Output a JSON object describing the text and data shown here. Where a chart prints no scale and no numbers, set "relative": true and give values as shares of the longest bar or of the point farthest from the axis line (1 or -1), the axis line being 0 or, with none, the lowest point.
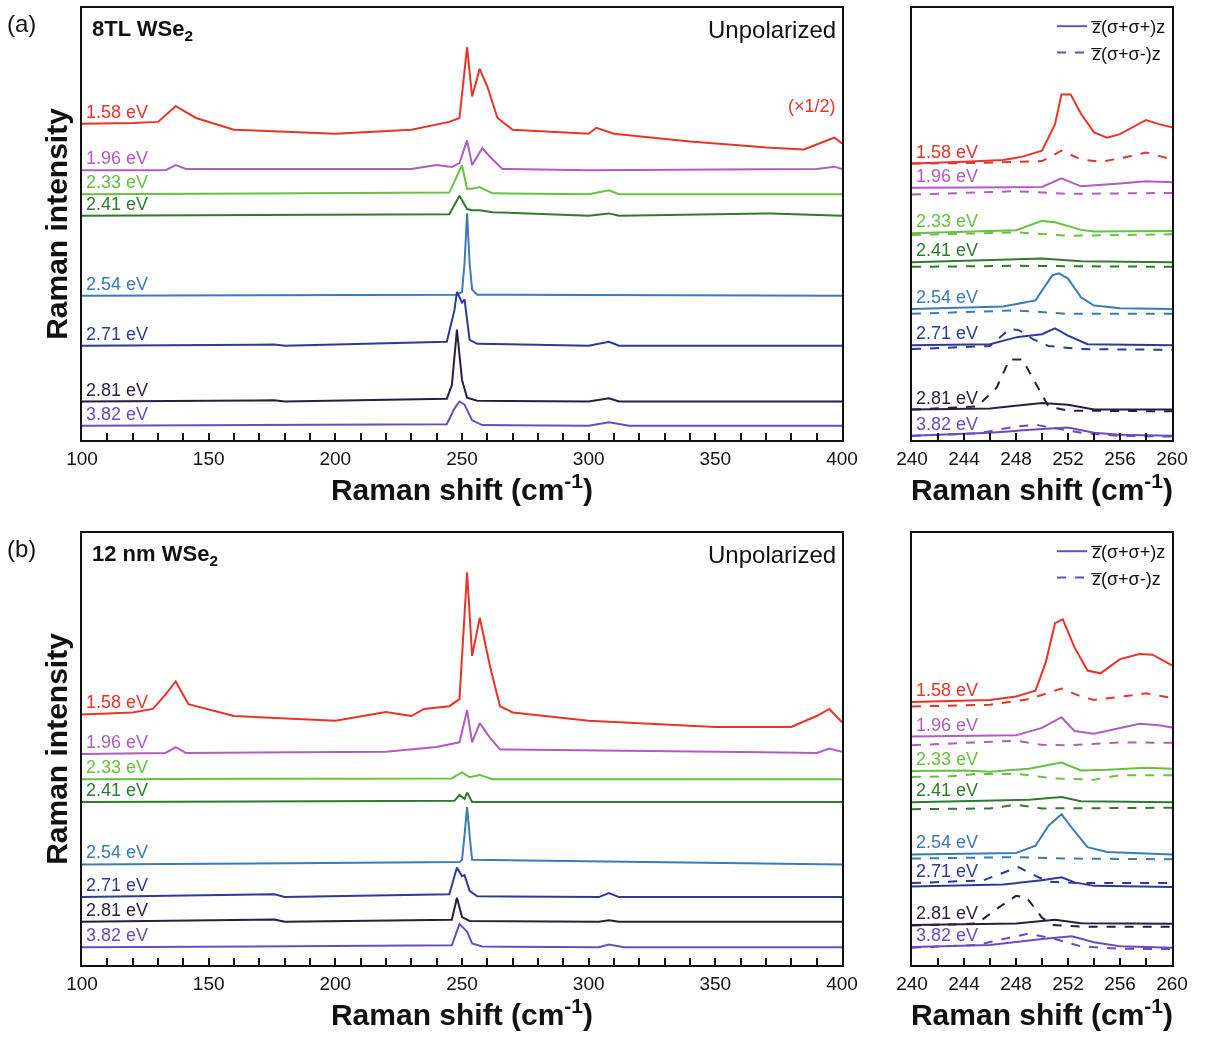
{
  "chart_data": [
    {
      "type": "line",
      "title": "(a)",
      "subtitle": "8TL WSe$_{2}$",
      "xlabel": "Raman shift (cm$^{-1}$)",
      "ylabel": "Raman intensity",
      "relative": true,
      "tick_labels": "x",
      "xlim": [
        100,
        400
      ],
      "xticks": [
        100,
        {
          "value": 110,
          "label": null
        },
        {
          "value": 120,
          "label": null
        },
        {
          "value": 130,
          "label": null
        },
        {
          "value": 140,
          "label": null
        },
        150,
        {
          "value": 160,
          "label": null
        },
        {
          "value": 170,
          "label": null
        },
        {
          "value": 180,
          "label": null
        },
        {
          "value": 190,
          "label": null
        },
        200,
        {
          "value": 210,
          "label": null
        },
        {
          "value": 220,
          "label": null
        },
        {
          "value": 230,
          "label": null
        },
        {
          "value": 240,
          "label": null
        },
        250,
        {
          "value": 260,
          "label": null
        },
        {
          "value": 270,
          "label": null
        },
        {
          "value": 280,
          "label": null
        },
        {
          "value": 290,
          "label": null
        },
        300,
        {
          "value": 310,
          "label": null
        },
        {
          "value": 320,
          "label": null
        },
        {
          "value": 330,
          "label": null
        },
        {
          "value": 340,
          "label": null
        },
        350,
        {
          "value": 360,
          "label": null
        },
        {
          "value": 370,
          "label": null
        },
        {
          "value": 380,
          "label": null
        },
        {
          "value": 390,
          "label": null
        },
        400
      ],
      "annotations": [
        "Unpolarized",
        "(×1/2)"
      ],
      "series": [
        {
          "name": "1.58 eV",
          "color": "#e8332a",
          "x": [
            100,
            120,
            130,
            137,
            145,
            160,
            200,
            230,
            245,
            249,
            252,
            254,
            257,
            260,
            264,
            270,
            300,
            303,
            310,
            340,
            370,
            385,
            393,
            397,
            400
          ],
          "values": [
            0.805,
            0.807,
            0.81,
            0.85,
            0.82,
            0.79,
            0.78,
            0.79,
            0.81,
            0.82,
            1,
            0.875,
            0.945,
            0.9,
            0.82,
            0.79,
            0.78,
            0.795,
            0.78,
            0.76,
            0.745,
            0.74,
            0.76,
            0.77,
            0.755
          ]
        },
        {
          "name": "1.96 eV",
          "color": "#b05cc0",
          "x": [
            100,
            133,
            137,
            141,
            230,
            240,
            246,
            249,
            252,
            254,
            258,
            262,
            266,
            300,
            390,
            397,
            400
          ],
          "values": [
            0.687,
            0.687,
            0.7,
            0.69,
            0.69,
            0.7,
            0.695,
            0.705,
            0.763,
            0.7,
            0.743,
            0.715,
            0.69,
            0.687,
            0.69,
            0.696,
            0.69
          ]
        },
        {
          "name": "2.33 eV",
          "color": "#66c23f",
          "x": [
            100,
            245,
            250,
            252,
            254,
            257,
            262,
            300,
            308,
            312,
            400
          ],
          "values": [
            0.626,
            0.63,
            0.7,
            0.64,
            0.64,
            0.644,
            0.628,
            0.626,
            0.636,
            0.626,
            0.626
          ]
        },
        {
          "name": "2.41 eV",
          "color": "#2f7a2f",
          "x": [
            100,
            245,
            249,
            252,
            254,
            257,
            262,
            300,
            308,
            312,
            372,
            400
          ],
          "values": [
            0.571,
            0.575,
            0.622,
            0.588,
            0.585,
            0.585,
            0.58,
            0.571,
            0.577,
            0.571,
            0.577,
            0.571
          ]
        },
        {
          "name": "2.54 eV",
          "color": "#3d7ab8",
          "x": [
            100,
            248,
            250,
            251,
            252,
            253,
            254,
            256,
            400
          ],
          "values": [
            0.367,
            0.37,
            0.377,
            0.45,
            0.577,
            0.45,
            0.383,
            0.37,
            0.367
          ]
        },
        {
          "name": "2.71 eV",
          "color": "#2d3a9a",
          "x": [
            100,
            176,
            180,
            244,
            247,
            248,
            250,
            251,
            253,
            256,
            300,
            308,
            312,
            400
          ],
          "values": [
            0.24,
            0.243,
            0.24,
            0.25,
            0.33,
            0.377,
            0.35,
            0.358,
            0.255,
            0.245,
            0.24,
            0.25,
            0.24,
            0.24
          ]
        },
        {
          "name": "2.81 eV",
          "color": "#2b1d42",
          "x": [
            100,
            176,
            180,
            244,
            246,
            248,
            250,
            252,
            256,
            300,
            308,
            312,
            400
          ],
          "values": [
            0.098,
            0.101,
            0.098,
            0.105,
            0.14,
            0.281,
            0.153,
            0.108,
            0.1,
            0.098,
            0.106,
            0.098,
            0.098
          ]
        },
        {
          "name": "3.82 eV",
          "color": "#6b4cc0",
          "x": [
            100,
            244,
            247,
            249,
            251,
            254,
            258,
            300,
            308,
            316,
            400
          ],
          "values": [
            0.036,
            0.04,
            0.08,
            0.098,
            0.09,
            0.05,
            0.038,
            0.036,
            0.045,
            0.036,
            0.036
          ]
        }
      ]
    },
    {
      "type": "line",
      "xlabel": "Raman shift (cm$^{-1}$)",
      "relative": true,
      "tick_labels": "x",
      "legend": "top right",
      "xlim": [
        240,
        260
      ],
      "xticks": [
        240,
        {
          "value": 242,
          "label": null
        },
        244,
        {
          "value": 246,
          "label": null
        },
        248,
        {
          "value": 250,
          "label": null
        },
        252,
        {
          "value": 254,
          "label": null
        },
        256,
        {
          "value": 258,
          "label": null
        },
        260
      ],
      "annotations": [
        {
          "text": "1.58 eV",
          "y": 0.8
        },
        {
          "text": "1.96 eV",
          "y": 0.73
        },
        {
          "text": "2.33 eV",
          "y": 0.598
        },
        {
          "text": "2.41 eV",
          "y": 0.514
        },
        {
          "text": "2.54 eV",
          "y": 0.379
        },
        {
          "text": "2.71 eV",
          "y": 0.274
        },
        {
          "text": "2.81 eV",
          "y": 0.088
        },
        {
          "text": "3.82 eV",
          "y": 0.012
        }
      ],
      "series": [
        {
          "color": "#e8332a",
          "x": [
            240,
            244,
            247,
            248.5,
            250,
            251,
            251.5,
            252.2,
            253,
            254,
            255,
            256,
            258,
            259,
            260
          ],
          "values": [
            0.8,
            0.805,
            0.81,
            0.82,
            0.837,
            0.914,
            1,
            1,
            0.944,
            0.89,
            0.875,
            0.885,
            0.926,
            0.914,
            0.905
          ]
        },
        {
          "color": "#e8332a",
          "line_style": "dashed",
          "x": [
            240,
            244,
            248,
            250,
            251.5,
            253,
            254.5,
            256,
            258,
            260
          ],
          "values": [
            0.8,
            0.801,
            0.805,
            0.807,
            0.837,
            0.812,
            0.805,
            0.815,
            0.832,
            0.812
          ]
        },
        {
          "color": "#b05cc0",
          "x": [
            240,
            250,
            251.5,
            253,
            256,
            258,
            260
          ],
          "values": [
            0.73,
            0.732,
            0.757,
            0.734,
            0.742,
            0.749,
            0.746
          ]
        },
        {
          "color": "#b05cc0",
          "line_style": "dashed",
          "x": [
            240,
            248,
            252,
            260
          ],
          "values": [
            0.71,
            0.72,
            0.712,
            0.715
          ]
        },
        {
          "color": "#66c23f",
          "x": [
            240,
            248,
            250,
            251,
            253,
            254,
            260
          ],
          "values": [
            0.598,
            0.607,
            0.634,
            0.63,
            0.608,
            0.603,
            0.605
          ]
        },
        {
          "color": "#66c23f",
          "line_style": "dashed",
          "x": [
            240,
            248,
            252,
            260
          ],
          "values": [
            0.593,
            0.601,
            0.591,
            0.595
          ]
        },
        {
          "color": "#2f7a2f",
          "x": [
            240,
            250,
            253,
            260
          ],
          "values": [
            0.514,
            0.525,
            0.517,
            0.514
          ]
        },
        {
          "color": "#2f7a2f",
          "line_style": "dashed",
          "x": [
            240,
            248,
            260
          ],
          "values": [
            0.501,
            0.504,
            0.501
          ]
        },
        {
          "color": "#3d7ab8",
          "x": [
            240,
            247,
            249.5,
            250.8,
            251.3,
            252,
            253,
            254,
            256,
            260
          ],
          "values": [
            0.379,
            0.386,
            0.404,
            0.477,
            0.482,
            0.467,
            0.413,
            0.389,
            0.381,
            0.379
          ]
        },
        {
          "color": "#3d7ab8",
          "line_style": "dashed",
          "x": [
            240,
            248,
            252,
            260
          ],
          "values": [
            0.365,
            0.375,
            0.365,
            0.365
          ]
        },
        {
          "color": "#2d3a9a",
          "x": [
            240,
            246,
            248,
            250,
            251,
            252,
            253.5,
            260
          ],
          "values": [
            0.274,
            0.277,
            0.297,
            0.306,
            0.323,
            0.302,
            0.277,
            0.274
          ]
        },
        {
          "color": "#2d3a9a",
          "line_style": "dashed",
          "x": [
            240,
            246,
            247.5,
            248.2,
            249.3,
            250.5,
            253,
            260
          ],
          "values": [
            0.263,
            0.272,
            0.321,
            0.318,
            0.292,
            0.272,
            0.263,
            0.261
          ]
        },
        {
          "color": "#2b1d42",
          "x": [
            240,
            246,
            250,
            252,
            254,
            260
          ],
          "values": [
            0.088,
            0.091,
            0.107,
            0.102,
            0.088,
            0.088
          ]
        },
        {
          "color": "#2b1d42",
          "line_style": "dashed",
          "x": [
            240,
            245,
            246.5,
            247.5,
            248.5,
            249.5,
            250.5,
            252,
            260
          ],
          "values": [
            0.088,
            0.097,
            0.151,
            0.233,
            0.233,
            0.165,
            0.097,
            0.085,
            0.083
          ]
        },
        {
          "name": "z̅(σ+σ+)z",
          "color": "#6b4cc0",
          "x": [
            240,
            246,
            250,
            252,
            254,
            256,
            260
          ],
          "values": [
            0.012,
            0.021,
            0.032,
            0.036,
            0.021,
            0.015,
            0.012
          ]
        },
        {
          "name": "z̅(σ+σ-)z",
          "color": "#6b4cc0",
          "line_style": "dashed",
          "x": [
            240,
            245,
            248,
            249.5,
            251.5,
            253,
            256,
            260
          ],
          "values": [
            0.012,
            0.019,
            0.039,
            0.044,
            0.031,
            0.021,
            0.012,
            0.01
          ]
        }
      ]
    },
    {
      "type": "line",
      "title": "(b)",
      "subtitle": "12 nm WSe$_{2}$",
      "xlabel": "Raman shift (cm$^{-1}$)",
      "ylabel": "Raman intensity",
      "relative": true,
      "tick_labels": "x",
      "xlim": [
        100,
        400
      ],
      "xticks": [
        100,
        {
          "value": 110,
          "label": null
        },
        {
          "value": 120,
          "label": null
        },
        {
          "value": 130,
          "label": null
        },
        {
          "value": 140,
          "label": null
        },
        150,
        {
          "value": 160,
          "label": null
        },
        {
          "value": 170,
          "label": null
        },
        {
          "value": 180,
          "label": null
        },
        {
          "value": 190,
          "label": null
        },
        200,
        {
          "value": 210,
          "label": null
        },
        {
          "value": 220,
          "label": null
        },
        {
          "value": 230,
          "label": null
        },
        {
          "value": 240,
          "label": null
        },
        250,
        {
          "value": 260,
          "label": null
        },
        {
          "value": 270,
          "label": null
        },
        {
          "value": 280,
          "label": null
        },
        {
          "value": 290,
          "label": null
        },
        300,
        {
          "value": 310,
          "label": null
        },
        {
          "value": 320,
          "label": null
        },
        {
          "value": 330,
          "label": null
        },
        {
          "value": 340,
          "label": null
        },
        350,
        {
          "value": 360,
          "label": null
        },
        {
          "value": 370,
          "label": null
        },
        {
          "value": 380,
          "label": null
        },
        {
          "value": 390,
          "label": null
        },
        400
      ],
      "annotations": [
        "Unpolarized"
      ],
      "series": [
        {
          "name": "1.58 eV",
          "color": "#e8332a",
          "x": [
            100,
            120,
            128,
            133,
            137,
            142,
            160,
            200,
            220,
            230,
            235,
            245,
            249,
            252,
            254,
            257,
            261,
            265,
            270,
            300,
            350,
            380,
            390,
            395,
            400
          ],
          "values": [
            0.638,
            0.643,
            0.652,
            0.689,
            0.722,
            0.664,
            0.634,
            0.622,
            0.644,
            0.634,
            0.652,
            0.659,
            0.677,
            1,
            0.787,
            0.884,
            0.762,
            0.659,
            0.643,
            0.622,
            0.606,
            0.606,
            0.634,
            0.652,
            0.618
          ]
        },
        {
          "name": "1.96 eV",
          "color": "#b05cc0",
          "x": [
            100,
            133,
            137,
            141,
            220,
            240,
            249,
            252,
            254,
            257,
            261,
            265,
            390,
            395,
            400
          ],
          "values": [
            0.537,
            0.54,
            0.555,
            0.54,
            0.543,
            0.555,
            0.567,
            0.649,
            0.567,
            0.616,
            0.579,
            0.549,
            0.54,
            0.551,
            0.543
          ]
        },
        {
          "name": "2.33 eV",
          "color": "#66c23f",
          "x": [
            100,
            246,
            250,
            253,
            257,
            262,
            400
          ],
          "values": [
            0.473,
            0.475,
            0.491,
            0.478,
            0.484,
            0.473,
            0.473
          ]
        },
        {
          "name": "2.41 eV",
          "color": "#2f7a2f",
          "x": [
            100,
            247,
            249,
            251,
            252,
            254,
            400
          ],
          "values": [
            0.415,
            0.418,
            0.433,
            0.423,
            0.439,
            0.415,
            0.415
          ]
        },
        {
          "name": "2.54 eV",
          "color": "#3d7ab8",
          "x": [
            100,
            249,
            250,
            251,
            252,
            253,
            254,
            400
          ],
          "values": [
            0.256,
            0.262,
            0.268,
            0.33,
            0.402,
            0.33,
            0.268,
            0.256
          ]
        },
        {
          "name": "2.71 eV",
          "color": "#2d3a9a",
          "x": [
            100,
            176,
            180,
            245,
            248,
            250,
            251,
            253,
            256,
            304,
            308,
            312,
            400
          ],
          "values": [
            0.173,
            0.18,
            0.173,
            0.18,
            0.248,
            0.226,
            0.229,
            0.189,
            0.175,
            0.173,
            0.183,
            0.173,
            0.173
          ]
        },
        {
          "name": "2.81 eV",
          "color": "#2b1d42",
          "x": [
            100,
            176,
            180,
            246,
            248,
            250,
            253,
            304,
            308,
            312,
            400
          ],
          "values": [
            0.11,
            0.116,
            0.11,
            0.115,
            0.171,
            0.122,
            0.112,
            0.11,
            0.114,
            0.11,
            0.11
          ]
        },
        {
          "name": "3.82 eV",
          "color": "#6b4cc0",
          "x": [
            100,
            246,
            249,
            252,
            254,
            258,
            304,
            308,
            314,
            400
          ],
          "values": [
            0.045,
            0.05,
            0.104,
            0.085,
            0.055,
            0.047,
            0.045,
            0.052,
            0.045,
            0.045
          ]
        }
      ]
    },
    {
      "type": "line",
      "xlabel": "Raman shift (cm$^{-1}$)",
      "relative": true,
      "tick_labels": "x",
      "legend": "top right",
      "xlim": [
        240,
        260
      ],
      "xticks": [
        240,
        {
          "value": 242,
          "label": null
        },
        244,
        {
          "value": 246,
          "label": null
        },
        248,
        {
          "value": 250,
          "label": null
        },
        252,
        {
          "value": 254,
          "label": null
        },
        256,
        {
          "value": 258,
          "label": null
        },
        260
      ],
      "annotations": [
        {
          "text": "1.58 eV",
          "y": 0.761
        },
        {
          "text": "1.96 eV",
          "y": 0.661
        },
        {
          "text": "2.33 eV",
          "y": 0.561
        },
        {
          "text": "2.41 eV",
          "y": 0.471
        },
        {
          "text": "2.54 eV",
          "y": 0.32
        },
        {
          "text": "2.71 eV",
          "y": 0.237
        },
        {
          "text": "2.81 eV",
          "y": 0.116
        },
        {
          "text": "3.82 eV",
          "y": 0.052
        }
      ],
      "series": [
        {
          "color": "#e8332a",
          "x": [
            240,
            246,
            248,
            249.5,
            250.3,
            251,
            251.6,
            252.5,
            253.5,
            254.5,
            256,
            257.5,
            258.5,
            260
          ],
          "values": [
            0.761,
            0.767,
            0.777,
            0.794,
            0.877,
            0.989,
            1,
            0.919,
            0.852,
            0.844,
            0.885,
            0.9,
            0.898,
            0.867
          ]
        },
        {
          "color": "#e8332a",
          "line_style": "dashed",
          "x": [
            240,
            246,
            249,
            251.5,
            253,
            254,
            256,
            258,
            260
          ],
          "values": [
            0.748,
            0.753,
            0.769,
            0.8,
            0.777,
            0.767,
            0.776,
            0.786,
            0.773
          ]
        },
        {
          "color": "#b05cc0",
          "x": [
            240,
            248,
            250,
            251.5,
            252.5,
            254,
            257.5,
            259,
            260
          ],
          "values": [
            0.661,
            0.665,
            0.686,
            0.717,
            0.677,
            0.669,
            0.698,
            0.694,
            0.687
          ]
        },
        {
          "color": "#b05cc0",
          "line_style": "dashed",
          "x": [
            240,
            248,
            250,
            252,
            256,
            260
          ],
          "values": [
            0.636,
            0.649,
            0.637,
            0.636,
            0.644,
            0.643
          ]
        },
        {
          "color": "#66c23f",
          "x": [
            240,
            244,
            246,
            249,
            251.5,
            253,
            255,
            258,
            260
          ],
          "values": [
            0.561,
            0.563,
            0.559,
            0.568,
            0.586,
            0.563,
            0.565,
            0.571,
            0.568
          ]
        },
        {
          "color": "#66c23f",
          "line_style": "dashed",
          "x": [
            240,
            243,
            245,
            248,
            251,
            254,
            256,
            260
          ],
          "values": [
            0.544,
            0.546,
            0.553,
            0.553,
            0.54,
            0.536,
            0.549,
            0.549
          ]
        },
        {
          "color": "#2f7a2f",
          "x": [
            240,
            249,
            251.5,
            253,
            260
          ],
          "values": [
            0.471,
            0.478,
            0.486,
            0.474,
            0.471
          ]
        },
        {
          "color": "#2f7a2f",
          "line_style": "dashed",
          "x": [
            240,
            246,
            248,
            250,
            260
          ],
          "values": [
            0.451,
            0.453,
            0.464,
            0.453,
            0.455
          ]
        },
        {
          "color": "#3d7ab8",
          "x": [
            240,
            248,
            249.5,
            250.5,
            251.5,
            252.5,
            253.5,
            255,
            260
          ],
          "values": [
            0.32,
            0.324,
            0.345,
            0.403,
            0.436,
            0.387,
            0.341,
            0.327,
            0.32
          ]
        },
        {
          "color": "#3d7ab8",
          "line_style": "dashed",
          "x": [
            240,
            248,
            252,
            260
          ],
          "values": [
            0.308,
            0.312,
            0.308,
            0.306
          ]
        },
        {
          "color": "#2d3a9a",
          "x": [
            240,
            247,
            250,
            251.5,
            252.5,
            254,
            260
          ],
          "values": [
            0.227,
            0.233,
            0.245,
            0.254,
            0.239,
            0.229,
            0.226
          ]
        },
        {
          "color": "#2d3a9a",
          "line_style": "dashed",
          "x": [
            240,
            245.5,
            247.5,
            248.2,
            249.5,
            250.5,
            253,
            260
          ],
          "values": [
            0.237,
            0.245,
            0.274,
            0.283,
            0.258,
            0.241,
            0.237,
            0.237
          ]
        },
        {
          "color": "#2b1d42",
          "x": [
            240,
            248,
            251,
            253,
            260
          ],
          "values": [
            0.116,
            0.12,
            0.131,
            0.121,
            0.119
          ]
        },
        {
          "color": "#2b1d42",
          "line_style": "dashed",
          "x": [
            240,
            245,
            246.5,
            248,
            248.8,
            250,
            250.8,
            253,
            260
          ],
          "values": [
            0.114,
            0.12,
            0.162,
            0.2,
            0.196,
            0.137,
            0.116,
            0.111,
            0.111
          ]
        },
        {
          "name": "z̅(σ+σ+)z",
          "color": "#6b4cc0",
          "x": [
            240,
            246,
            250,
            252.3,
            254,
            256,
            260
          ],
          "values": [
            0.052,
            0.058,
            0.075,
            0.083,
            0.066,
            0.054,
            0.05
          ]
        },
        {
          "name": "z̅(σ+σ-)z",
          "color": "#6b4cc0",
          "line_style": "dashed",
          "x": [
            240,
            245,
            247.5,
            249,
            251,
            253,
            256,
            260
          ],
          "values": [
            0.05,
            0.058,
            0.079,
            0.091,
            0.075,
            0.054,
            0.047,
            0.046
          ]
        }
      ]
    }
  ]
}
